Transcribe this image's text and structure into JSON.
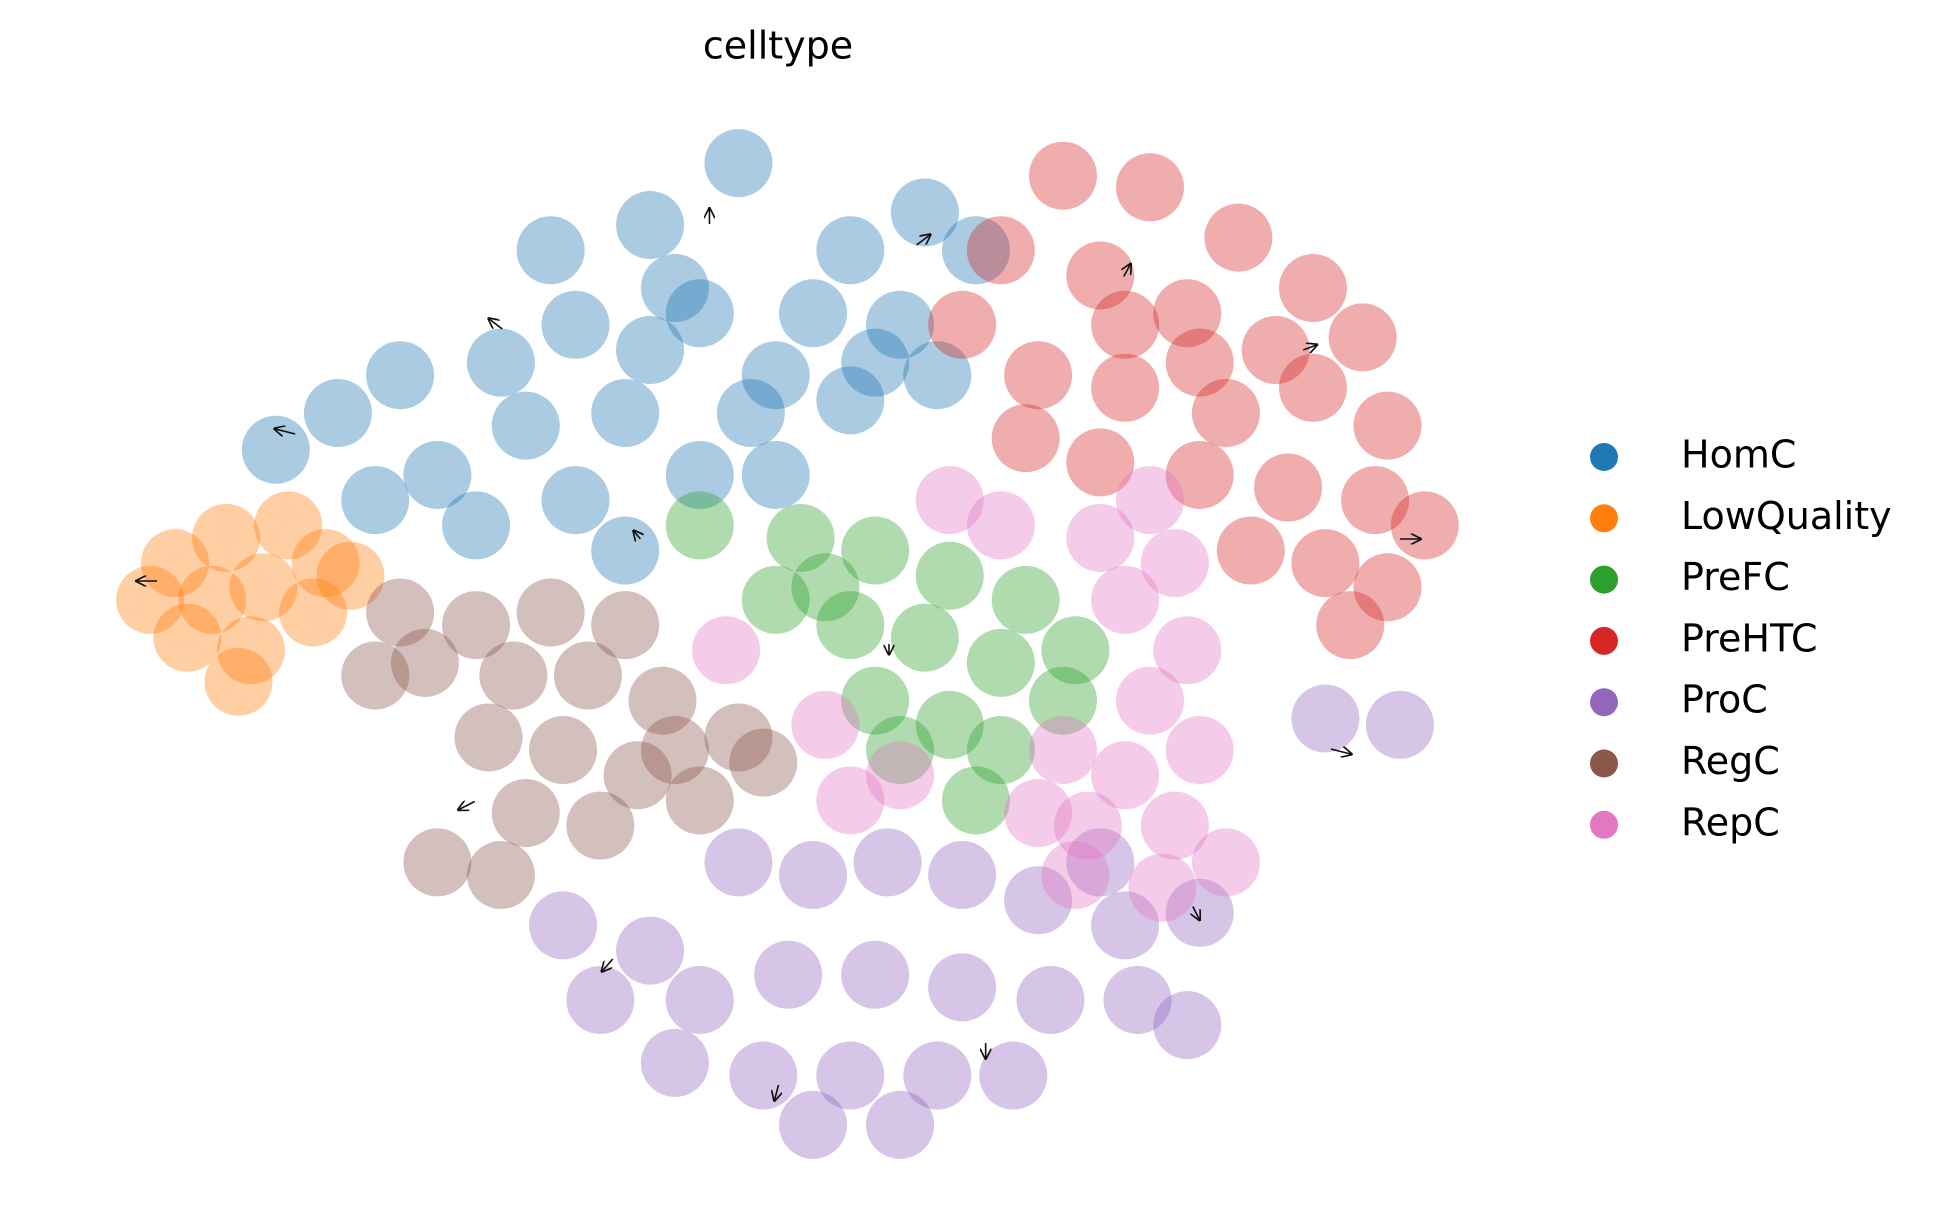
{
  "chart_data": {
    "type": "scatter",
    "title": "celltype",
    "legend": "right",
    "xlim": [
      0,
      100
    ],
    "ylim": [
      0,
      100
    ],
    "series": [
      {
        "name": "HomC",
        "color": "#1f77b4",
        "x": [
          47.1,
          40.7,
          44.3,
          49.8,
          55.2,
          60.6,
          35.3,
          29.9,
          22.6,
          18.1,
          13.6,
          25.3,
          31.7,
          38.9,
          44.3,
          49.8,
          55.2,
          58.8,
          64.3,
          38.9,
          42.5,
          52.5,
          20.8,
          28.1,
          35.3,
          48.0,
          57.0,
          61.5,
          33.5,
          40.7
        ],
        "y": [
          95.8,
          89.9,
          81.5,
          75.6,
          87.5,
          91.1,
          80.4,
          76.8,
          75.6,
          72.0,
          68.5,
          66.1,
          70.8,
          72.0,
          66.1,
          66.1,
          73.2,
          80.4,
          87.5,
          58.9,
          83.9,
          81.5,
          63.7,
          61.3,
          63.7,
          72.0,
          76.8,
          75.6,
          87.5,
          78.0
        ]
      },
      {
        "name": "LowQuality",
        "color": "#ff7f0e",
        "x": [
          6.3,
          10.0,
          14.5,
          17.2,
          9.0,
          12.7,
          7.2,
          11.8,
          16.3,
          19.0,
          4.5,
          10.9
        ],
        "y": [
          57.7,
          60.1,
          61.3,
          57.7,
          54.2,
          55.4,
          50.6,
          49.4,
          53.0,
          56.5,
          54.2,
          46.4
        ]
      },
      {
        "name": "PreFC",
        "color": "#2ca02c",
        "x": [
          51.6,
          57.0,
          62.4,
          67.9,
          71.5,
          49.8,
          55.2,
          60.6,
          66.1,
          70.6,
          57.0,
          62.4,
          66.1,
          58.8,
          53.4,
          64.3,
          44.3
        ],
        "y": [
          60.1,
          58.9,
          56.5,
          54.2,
          49.4,
          54.2,
          51.8,
          50.6,
          48.2,
          44.6,
          44.6,
          42.3,
          39.9,
          39.9,
          55.4,
          35.1,
          61.3
        ]
      },
      {
        "name": "PreHTC",
        "color": "#d62728",
        "x": [
          70.6,
          76.9,
          83.3,
          88.7,
          92.3,
          66.1,
          73.3,
          79.6,
          86.0,
          63.3,
          68.8,
          75.1,
          82.4,
          88.7,
          94.1,
          67.9,
          73.3,
          80.5,
          86.9,
          93.2,
          96.8,
          89.6,
          94.1,
          91.4,
          80.5,
          84.2,
          75.1
        ],
        "y": [
          94.6,
          93.5,
          88.7,
          83.9,
          79.2,
          87.5,
          85.1,
          81.5,
          78.0,
          80.4,
          75.6,
          74.4,
          72.0,
          74.4,
          70.8,
          69.6,
          67.3,
          66.1,
          64.9,
          63.7,
          61.3,
          57.7,
          55.4,
          51.8,
          76.8,
          58.9,
          80.4
        ]
      },
      {
        "name": "ProC",
        "color": "#9467bd",
        "x": [
          34.4,
          40.7,
          47.1,
          52.5,
          57.9,
          63.3,
          68.8,
          75.1,
          80.5,
          37.1,
          44.3,
          50.7,
          57.0,
          63.3,
          69.7,
          76.0,
          79.6,
          42.5,
          48.9,
          55.2,
          61.5,
          67.0,
          52.5,
          58.8,
          89.6,
          95.0,
          73.3
        ],
        "y": [
          23.2,
          20.8,
          29.2,
          28.0,
          29.2,
          28.0,
          25.6,
          23.2,
          24.4,
          16.1,
          16.1,
          18.5,
          18.5,
          17.3,
          16.1,
          16.1,
          13.7,
          10.1,
          8.9,
          8.9,
          8.9,
          8.9,
          4.2,
          4.2,
          42.9,
          42.3,
          29.2
        ]
      },
      {
        "name": "RegC",
        "color": "#8c564b",
        "x": [
          22.6,
          28.1,
          33.5,
          38.9,
          24.4,
          30.8,
          36.2,
          41.6,
          47.1,
          48.9,
          29.0,
          34.4,
          39.8,
          44.3,
          31.7,
          37.1,
          25.3,
          29.9,
          20.8,
          42.5
        ],
        "y": [
          53.0,
          51.8,
          53.0,
          51.8,
          48.2,
          47.0,
          47.0,
          44.6,
          41.1,
          38.7,
          41.1,
          39.9,
          37.5,
          35.1,
          33.9,
          32.7,
          29.2,
          28.0,
          47.0,
          39.9
        ]
      },
      {
        "name": "RepC",
        "color": "#e377c2",
        "x": [
          62.4,
          66.1,
          73.3,
          78.7,
          75.1,
          79.6,
          76.9,
          80.5,
          75.1,
          72.4,
          78.7,
          82.4,
          70.6,
          53.4,
          55.2,
          58.8,
          46.2,
          71.5,
          77.8,
          68.8,
          76.9
        ],
        "y": [
          63.7,
          61.3,
          60.1,
          57.7,
          54.2,
          49.4,
          44.6,
          39.9,
          37.5,
          32.7,
          32.7,
          29.2,
          39.9,
          42.3,
          35.1,
          37.5,
          49.4,
          28.0,
          26.8,
          33.9,
          63.7
        ]
      }
    ],
    "arrows": {
      "color": "#111111",
      "x": [
        5,
        15,
        30,
        45,
        60,
        75,
        88,
        95,
        90,
        80,
        65,
        50,
        38,
        28,
        58,
        40
      ],
      "y": [
        56,
        70,
        80,
        90,
        88,
        85,
        78,
        60,
        40,
        25,
        12,
        8,
        20,
        35,
        50,
        60
      ],
      "u": [
        -1.5,
        -1.5,
        -1,
        0,
        1,
        0.5,
        1,
        1.5,
        1.5,
        0.5,
        0,
        -0.3,
        -0.8,
        -1.2,
        0,
        -0.5
      ],
      "v": [
        0,
        0.5,
        1,
        1.5,
        1,
        1.2,
        0.5,
        0,
        -0.5,
        -1.3,
        -1.5,
        -1.5,
        -1.2,
        -0.8,
        -1,
        0.8
      ]
    }
  }
}
